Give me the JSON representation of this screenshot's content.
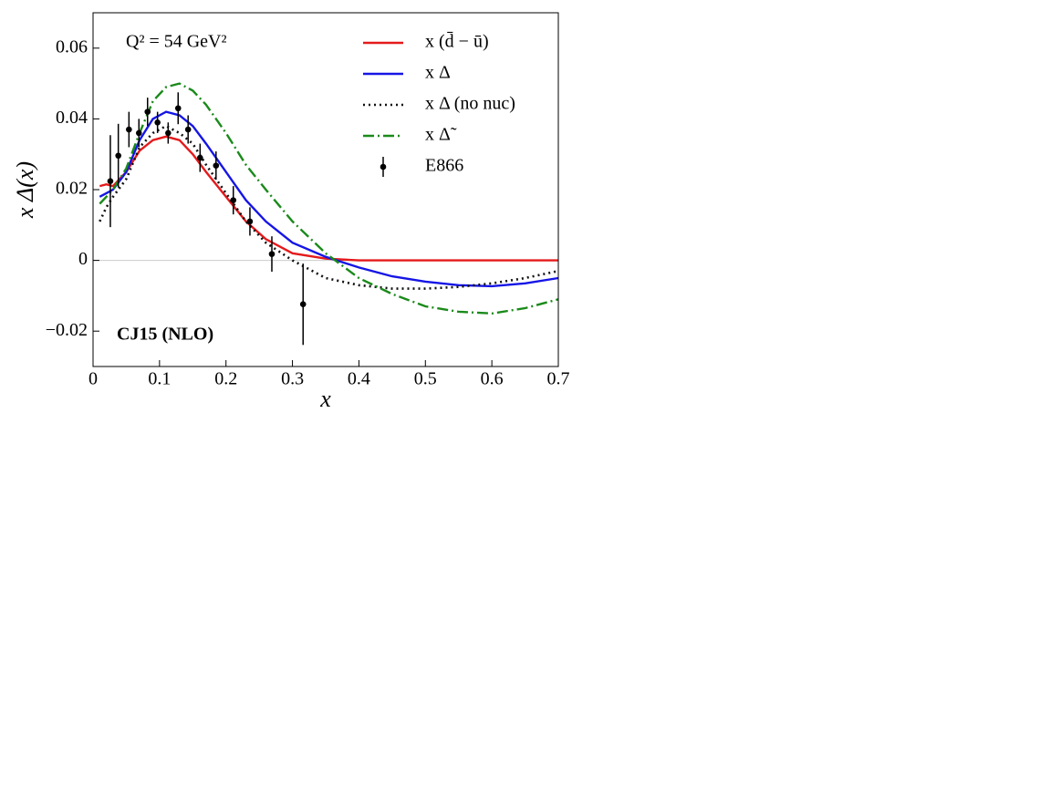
{
  "chart_data": {
    "type": "line",
    "xlabel": "x",
    "ylabel": "x Δ(x)",
    "annotations": [
      "Q² = 54 GeV²",
      "CJ15 (NLO)"
    ],
    "xlim": [
      0,
      0.7
    ],
    "ylim": [
      -0.03,
      0.07
    ],
    "xticks": [
      0,
      0.1,
      0.2,
      0.3,
      0.4,
      0.5,
      0.6,
      0.7
    ],
    "yticks": [
      {
        "value": -0.02,
        "label": "−0.02"
      },
      0,
      0.02,
      0.04,
      0.06
    ],
    "zero_line": true,
    "legend": "upper right",
    "x": [
      0.01,
      0.02,
      0.03,
      0.05,
      0.07,
      0.09,
      0.11,
      0.13,
      0.15,
      0.17,
      0.2,
      0.23,
      0.26,
      0.3,
      0.35,
      0.4,
      0.45,
      0.5,
      0.55,
      0.6,
      0.65,
      0.7
    ],
    "series": [
      {
        "name": "x (d̄ − ū)",
        "color": "#e41a1c",
        "style": "solid",
        "values": [
          0.021,
          0.0215,
          0.021,
          0.025,
          0.031,
          0.034,
          0.035,
          0.034,
          0.03,
          0.025,
          0.018,
          0.011,
          0.006,
          0.002,
          0.0005,
          0,
          0,
          0,
          0,
          0,
          0,
          0
        ]
      },
      {
        "name": "x Δ",
        "color": "#1515e6",
        "style": "solid",
        "values": [
          0.018,
          0.019,
          0.02,
          0.025,
          0.034,
          0.04,
          0.042,
          0.041,
          0.038,
          0.033,
          0.025,
          0.017,
          0.011,
          0.005,
          0.001,
          -0.002,
          -0.0045,
          -0.006,
          -0.007,
          -0.0073,
          -0.0065,
          -0.005
        ]
      },
      {
        "name": "x Δ (no nuc)",
        "color": "#111111",
        "style": "dotted",
        "values": [
          0.011,
          0.015,
          0.018,
          0.023,
          0.032,
          0.036,
          0.038,
          0.036,
          0.033,
          0.027,
          0.019,
          0.011,
          0.005,
          0.0,
          -0.005,
          -0.007,
          -0.008,
          -0.008,
          -0.0075,
          -0.0065,
          -0.005,
          -0.003
        ]
      },
      {
        "name": "x Δ̃",
        "color": "#1a8a1a",
        "style": "dashdot",
        "values": [
          0.016,
          0.018,
          0.02,
          0.026,
          0.036,
          0.045,
          0.049,
          0.05,
          0.048,
          0.044,
          0.036,
          0.027,
          0.02,
          0.011,
          0.002,
          -0.005,
          -0.0095,
          -0.013,
          -0.0145,
          -0.015,
          -0.0135,
          -0.011
        ]
      },
      {
        "name": "E866",
        "color": "#000000",
        "style": "errorbar",
        "x": [
          0.026,
          0.038,
          0.054,
          0.069,
          0.082,
          0.097,
          0.113,
          0.128,
          0.143,
          0.161,
          0.185,
          0.211,
          0.236,
          0.269,
          0.316
        ],
        "values": [
          0.0224,
          0.0296,
          0.037,
          0.036,
          0.042,
          0.039,
          0.036,
          0.043,
          0.037,
          0.029,
          0.0268,
          0.017,
          0.011,
          0.0018,
          -0.0124
        ],
        "errors": [
          0.013,
          0.009,
          0.005,
          0.004,
          0.004,
          0.003,
          0.003,
          0.0045,
          0.004,
          0.004,
          0.004,
          0.004,
          0.004,
          0.005,
          0.0115
        ]
      }
    ]
  }
}
